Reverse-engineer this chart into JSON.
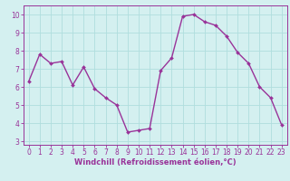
{
  "x": [
    0,
    1,
    2,
    3,
    4,
    5,
    6,
    7,
    8,
    9,
    10,
    11,
    12,
    13,
    14,
    15,
    16,
    17,
    18,
    19,
    20,
    21,
    22,
    23
  ],
  "y": [
    6.3,
    7.8,
    7.3,
    7.4,
    6.1,
    7.1,
    5.9,
    5.4,
    5.0,
    3.5,
    3.6,
    3.7,
    6.9,
    7.6,
    9.9,
    10.0,
    9.6,
    9.4,
    8.8,
    7.9,
    7.3,
    6.0,
    5.4,
    3.9
  ],
  "line_color": "#993399",
  "marker": "D",
  "marker_size": 2.0,
  "linewidth": 1.0,
  "xlabel": "Windchill (Refroidissement éolien,°C)",
  "xlabel_fontsize": 6.0,
  "xlim": [
    -0.5,
    23.5
  ],
  "ylim": [
    2.8,
    10.5
  ],
  "yticks": [
    3,
    4,
    5,
    6,
    7,
    8,
    9,
    10
  ],
  "xticks": [
    0,
    1,
    2,
    3,
    4,
    5,
    6,
    7,
    8,
    9,
    10,
    11,
    12,
    13,
    14,
    15,
    16,
    17,
    18,
    19,
    20,
    21,
    22,
    23
  ],
  "grid_color": "#b0dede",
  "bg_color": "#d4f0f0",
  "tick_fontsize": 5.5,
  "spine_color": "#993399"
}
